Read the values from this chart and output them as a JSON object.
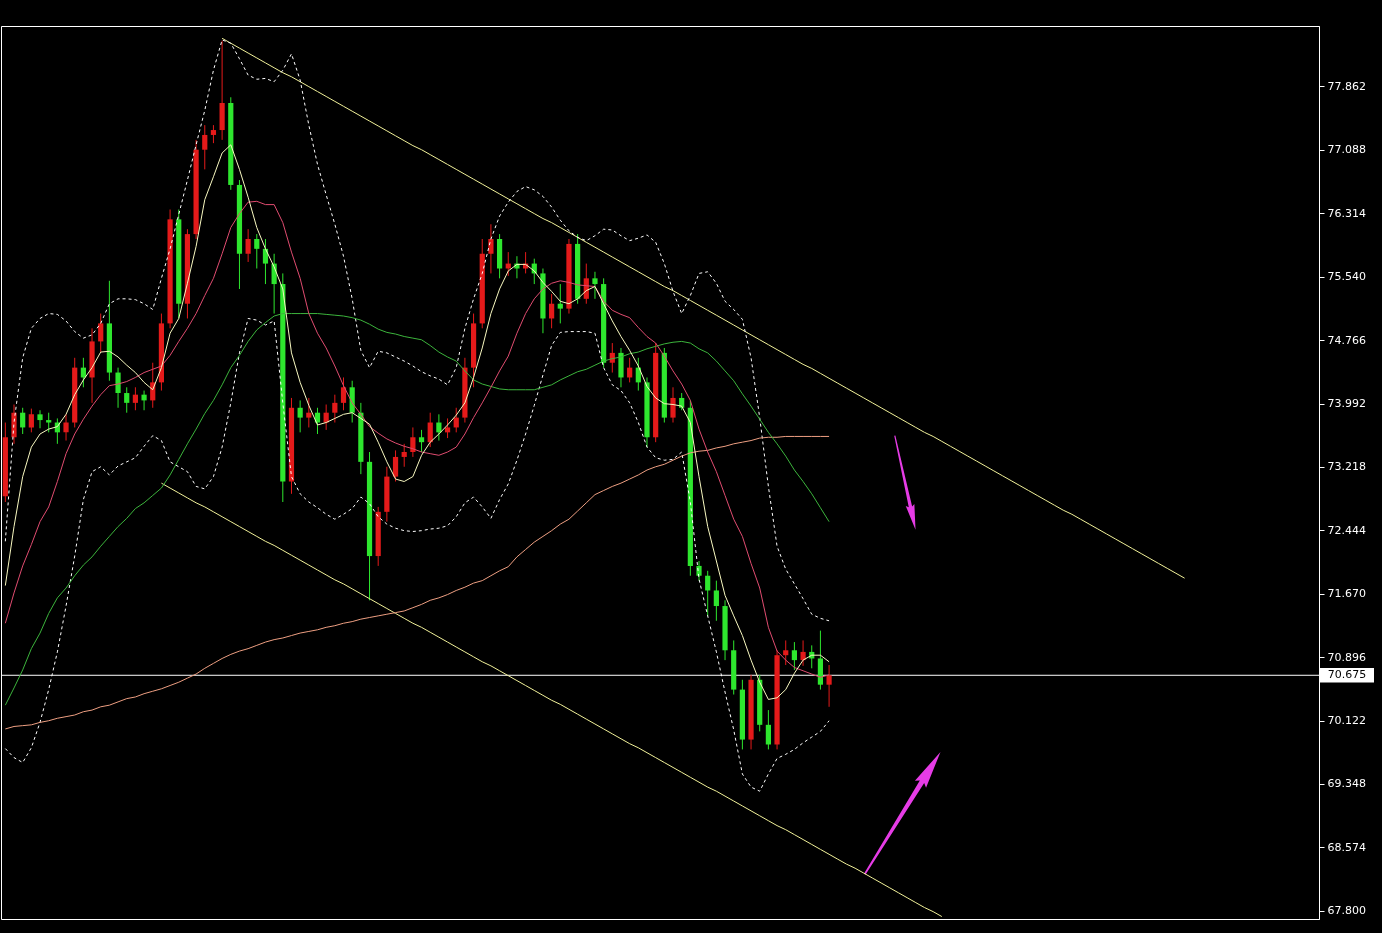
{
  "chart_data": {
    "type": "candlestick",
    "categories": [
      null,
      null,
      null,
      null,
      null,
      null,
      null,
      null,
      null,
      null,
      null,
      null,
      null,
      null,
      null,
      null,
      null,
      null,
      null,
      null,
      null,
      null,
      null,
      null,
      null,
      null,
      null,
      null,
      null,
      null,
      null,
      null,
      null,
      null,
      null,
      null,
      null,
      null,
      null,
      null,
      null,
      null,
      null,
      null,
      null,
      null,
      null,
      null,
      null,
      null,
      null,
      null,
      null,
      null,
      null,
      null,
      null,
      null,
      null,
      null,
      null,
      null,
      null,
      null,
      null,
      null,
      null,
      null,
      null,
      null,
      null,
      null,
      null,
      null,
      null,
      null,
      null,
      null,
      null,
      null,
      null,
      null,
      null,
      null,
      null,
      null,
      null,
      null,
      null,
      null,
      null,
      null,
      null,
      null,
      null,
      null,
      null,
      null,
      null,
      null,
      null,
      null,
      null,
      null,
      null,
      null,
      null,
      null,
      null,
      null,
      null,
      null,
      null,
      null,
      null,
      null,
      null,
      null,
      null,
      null,
      null,
      null,
      null,
      null,
      null,
      null,
      null,
      null,
      null,
      null,
      null,
      null,
      null,
      null,
      null,
      null,
      null,
      null,
      null,
      null,
      null,
      null,
      null,
      null,
      null,
      null,
      null,
      null,
      null,
      null,
      null,
      null
    ],
    "ohlc": [
      [
        72.86,
        73.76,
        72.79,
        73.58
      ],
      [
        73.58,
        73.98,
        73.5,
        73.88
      ],
      [
        73.88,
        73.94,
        73.62,
        73.7
      ],
      [
        73.7,
        73.93,
        73.64,
        73.86
      ],
      [
        73.86,
        73.91,
        73.69,
        73.79
      ],
      [
        73.79,
        73.88,
        73.64,
        73.76
      ],
      [
        73.76,
        73.81,
        73.5,
        73.64
      ],
      [
        73.64,
        73.86,
        73.54,
        73.76
      ],
      [
        73.76,
        74.55,
        73.7,
        74.43
      ],
      [
        74.43,
        74.55,
        74.19,
        74.31
      ],
      [
        74.31,
        74.91,
        74.0,
        74.75
      ],
      [
        74.75,
        75.09,
        74.61,
        74.97
      ],
      [
        74.97,
        75.49,
        74.27,
        74.37
      ],
      [
        74.37,
        74.43,
        73.94,
        74.12
      ],
      [
        74.12,
        74.19,
        73.88,
        74.0
      ],
      [
        74.0,
        74.19,
        73.91,
        74.1
      ],
      [
        74.1,
        74.15,
        73.91,
        74.03
      ],
      [
        74.03,
        74.49,
        73.94,
        74.25
      ],
      [
        74.25,
        75.09,
        74.15,
        74.97
      ],
      [
        74.97,
        76.36,
        74.91,
        76.24
      ],
      [
        76.24,
        76.36,
        75.03,
        75.21
      ],
      [
        75.21,
        76.12,
        75.03,
        76.06
      ],
      [
        76.06,
        77.21,
        76.0,
        77.09
      ],
      [
        77.09,
        77.39,
        76.85,
        77.27
      ],
      [
        77.27,
        77.39,
        77.17,
        77.33
      ],
      [
        77.33,
        78.42,
        77.21,
        77.66
      ],
      [
        77.66,
        77.73,
        76.6,
        76.66
      ],
      [
        76.66,
        76.72,
        75.39,
        75.82
      ],
      [
        75.82,
        76.12,
        75.72,
        76.0
      ],
      [
        76.0,
        76.06,
        75.64,
        75.88
      ],
      [
        75.88,
        76.0,
        75.45,
        75.7
      ],
      [
        75.7,
        75.82,
        75.09,
        75.45
      ],
      [
        75.45,
        75.58,
        72.79,
        73.04
      ],
      [
        73.04,
        74.06,
        72.89,
        73.94
      ],
      [
        73.94,
        74.03,
        73.64,
        73.82
      ],
      [
        73.82,
        74.06,
        73.7,
        73.88
      ],
      [
        73.88,
        73.94,
        73.62,
        73.76
      ],
      [
        73.76,
        73.98,
        73.67,
        73.88
      ],
      [
        73.88,
        74.1,
        73.76,
        74.0
      ],
      [
        74.0,
        74.31,
        73.91,
        74.19
      ],
      [
        74.19,
        74.27,
        73.76,
        73.88
      ],
      [
        73.88,
        74.0,
        73.13,
        73.28
      ],
      [
        73.28,
        73.4,
        71.59,
        72.13
      ],
      [
        72.13,
        72.73,
        72.01,
        72.67
      ],
      [
        72.67,
        73.22,
        72.55,
        73.1
      ],
      [
        73.1,
        73.42,
        73.04,
        73.34
      ],
      [
        73.34,
        73.5,
        73.22,
        73.4
      ],
      [
        73.4,
        73.7,
        73.34,
        73.58
      ],
      [
        73.58,
        73.67,
        73.4,
        73.52
      ],
      [
        73.52,
        73.88,
        73.46,
        73.76
      ],
      [
        73.76,
        73.86,
        73.54,
        73.64
      ],
      [
        73.64,
        73.81,
        73.57,
        73.7
      ],
      [
        73.7,
        73.94,
        73.64,
        73.82
      ],
      [
        73.82,
        74.55,
        73.76,
        74.43
      ],
      [
        74.43,
        75.09,
        74.19,
        74.97
      ],
      [
        74.97,
        76.0,
        74.91,
        75.82
      ],
      [
        75.82,
        76.18,
        75.58,
        76.0
      ],
      [
        76.0,
        76.06,
        75.52,
        75.64
      ],
      [
        75.64,
        75.84,
        75.55,
        75.7
      ],
      [
        75.7,
        75.79,
        75.52,
        75.64
      ],
      [
        75.64,
        75.84,
        75.58,
        75.7
      ],
      [
        75.7,
        75.76,
        75.45,
        75.58
      ],
      [
        75.58,
        75.64,
        74.85,
        75.03
      ],
      [
        75.03,
        75.33,
        74.91,
        75.21
      ],
      [
        75.21,
        75.45,
        74.97,
        75.15
      ],
      [
        75.15,
        76.0,
        75.09,
        75.94
      ],
      [
        75.94,
        76.06,
        75.21,
        75.27
      ],
      [
        75.27,
        75.7,
        75.21,
        75.52
      ],
      [
        75.52,
        75.6,
        75.27,
        75.45
      ],
      [
        75.45,
        75.52,
        74.43,
        74.49
      ],
      [
        74.49,
        74.73,
        74.37,
        74.61
      ],
      [
        74.61,
        74.67,
        74.19,
        74.31
      ],
      [
        74.31,
        74.55,
        74.25,
        74.43
      ],
      [
        74.43,
        74.55,
        74.15,
        74.25
      ],
      [
        74.25,
        74.31,
        73.46,
        73.58
      ],
      [
        73.58,
        74.73,
        73.52,
        74.61
      ],
      [
        74.61,
        74.67,
        73.76,
        73.82
      ],
      [
        73.82,
        74.19,
        73.76,
        74.06
      ],
      [
        74.06,
        74.12,
        73.91,
        73.94
      ],
      [
        73.94,
        74.03,
        71.89,
        72.01
      ],
      [
        72.01,
        72.07,
        71.83,
        71.89
      ],
      [
        71.89,
        71.95,
        71.4,
        71.71
      ],
      [
        71.71,
        71.83,
        71.34,
        71.52
      ],
      [
        71.52,
        71.59,
        70.86,
        70.98
      ],
      [
        70.98,
        71.1,
        70.44,
        70.5
      ],
      [
        70.5,
        70.62,
        69.77,
        69.89
      ],
      [
        69.89,
        70.68,
        69.77,
        70.62
      ],
      [
        70.62,
        70.68,
        69.99,
        70.07
      ],
      [
        70.07,
        70.25,
        69.77,
        69.83
      ],
      [
        69.83,
        70.98,
        69.77,
        70.92
      ],
      [
        70.92,
        71.1,
        70.8,
        70.98
      ],
      [
        70.98,
        71.08,
        70.74,
        70.86
      ],
      [
        70.86,
        71.1,
        70.79,
        70.96
      ],
      [
        70.96,
        71.04,
        70.76,
        70.88
      ],
      [
        70.88,
        71.22,
        70.5,
        70.56
      ],
      [
        70.56,
        70.8,
        70.29,
        70.675
      ],
      null,
      null,
      null,
      null,
      null,
      null,
      null,
      null,
      null,
      null,
      null,
      null,
      null,
      null,
      null,
      null,
      null,
      null,
      null,
      null,
      null,
      null,
      null,
      null,
      null,
      null,
      null,
      null,
      null,
      null,
      null,
      null,
      null,
      null,
      null,
      null,
      null,
      null,
      null,
      null,
      null,
      null,
      null,
      null,
      null,
      null,
      null,
      null,
      null,
      null,
      null,
      null,
      null,
      null,
      null,
      null
    ],
    "colors": [
      "#e41a1a",
      "#e41a1a",
      "#2ee62e",
      "#e41a1a",
      "#2ee62e",
      "#2ee62e",
      "#2ee62e",
      "#e41a1a",
      "#e41a1a",
      "#2ee62e",
      "#e41a1a",
      "#e41a1a",
      "#2ee62e",
      "#2ee62e",
      "#2ee62e",
      "#e41a1a",
      "#2ee62e",
      "#e41a1a",
      "#e41a1a",
      "#e41a1a",
      "#2ee62e",
      "#e41a1a",
      "#e41a1a",
      "#e41a1a",
      "#e41a1a",
      "#e41a1a",
      "#2ee62e",
      "#2ee62e",
      "#e41a1a",
      "#2ee62e",
      "#2ee62e",
      "#2ee62e",
      "#2ee62e",
      "#e41a1a",
      "#2ee62e",
      "#e41a1a",
      "#2ee62e",
      "#e41a1a",
      "#e41a1a",
      "#e41a1a",
      "#2ee62e",
      "#2ee62e",
      "#2ee62e",
      "#e41a1a",
      "#e41a1a",
      "#e41a1a",
      "#e41a1a",
      "#e41a1a",
      "#2ee62e",
      "#e41a1a",
      "#2ee62e",
      "#e41a1a",
      "#e41a1a",
      "#e41a1a",
      "#e41a1a",
      "#e41a1a",
      "#e41a1a",
      "#2ee62e",
      "#e41a1a",
      "#2ee62e",
      "#e41a1a",
      "#2ee62e",
      "#2ee62e",
      "#e41a1a",
      "#2ee62e",
      "#e41a1a",
      "#2ee62e",
      "#e41a1a",
      "#2ee62e",
      "#2ee62e",
      "#e41a1a",
      "#2ee62e",
      "#e41a1a",
      "#2ee62e",
      "#2ee62e",
      "#e41a1a",
      "#2ee62e",
      "#e41a1a",
      "#2ee62e",
      "#2ee62e",
      "#2ee62e",
      "#2ee62e",
      "#2ee62e",
      "#2ee62e",
      "#2ee62e",
      "#2ee62e",
      "#e41a1a",
      "#2ee62e",
      "#2ee62e",
      "#e41a1a",
      "#e41a1a",
      "#2ee62e",
      "#e41a1a",
      "#2ee62e",
      "#2ee62e",
      "#e41a1a",
      null,
      null,
      null,
      null,
      null,
      null,
      null,
      null,
      null,
      null,
      null,
      null,
      null,
      null,
      null,
      null,
      null,
      null,
      null,
      null,
      null,
      null,
      null,
      null,
      null,
      null,
      null,
      null,
      null,
      null,
      null,
      null,
      null,
      null,
      null,
      null,
      null,
      null,
      null,
      null,
      null,
      null,
      null,
      null,
      null,
      null,
      null,
      null,
      null,
      null,
      null,
      null,
      null,
      null,
      null,
      null
    ],
    "series": [
      {
        "type": "line",
        "color": "#f2f29a",
        "values": [
          null,
          null,
          null,
          null,
          null,
          null,
          null,
          null,
          null,
          null,
          null,
          null,
          null,
          null,
          null,
          null,
          null,
          null,
          null,
          null,
          null,
          null,
          null,
          null,
          null,
          78.45,
          78.39,
          78.33,
          78.27,
          78.21,
          78.15,
          78.09,
          78.03,
          77.98,
          77.92,
          77.86,
          77.8,
          77.74,
          77.68,
          77.62,
          77.56,
          77.5,
          77.44,
          77.38,
          77.32,
          77.26,
          77.2,
          77.14,
          77.09,
          77.03,
          76.97,
          76.91,
          76.85,
          76.79,
          76.73,
          76.67,
          76.61,
          76.55,
          76.49,
          76.43,
          76.37,
          76.31,
          76.25,
          76.2,
          76.14,
          76.08,
          76.02,
          75.96,
          75.9,
          75.84,
          75.78,
          75.72,
          75.66,
          75.6,
          75.54,
          75.48,
          75.42,
          75.37,
          75.31,
          75.25,
          75.19,
          75.13,
          75.07,
          75.01,
          74.95,
          74.89,
          74.83,
          74.77,
          74.71,
          74.65,
          74.59,
          74.53,
          74.47,
          74.42,
          74.36,
          74.3,
          74.24,
          74.18,
          74.12,
          74.06,
          74.0,
          73.94,
          73.88,
          73.82,
          73.76,
          73.7,
          73.64,
          73.59,
          73.53,
          73.47,
          73.41,
          73.35,
          73.29,
          73.23,
          73.17,
          73.11,
          73.05,
          72.99,
          72.93,
          72.87,
          72.81,
          72.75,
          72.69,
          72.64,
          72.58,
          72.52,
          72.46,
          72.4,
          72.34,
          72.28,
          72.22,
          72.16,
          72.1,
          72.04,
          71.98,
          71.92,
          71.86,
          null,
          null,
          null,
          null,
          null,
          null,
          null,
          null,
          null,
          null,
          null,
          null,
          null,
          null,
          null
        ]
      },
      {
        "type": "line",
        "color": "#f2f29a",
        "values": [
          null,
          null,
          null,
          null,
          null,
          null,
          null,
          null,
          null,
          null,
          null,
          null,
          null,
          null,
          null,
          null,
          null,
          null,
          73.02,
          72.96,
          72.9,
          72.84,
          72.78,
          72.73,
          72.67,
          72.61,
          72.55,
          72.49,
          72.43,
          72.37,
          72.31,
          72.26,
          72.2,
          72.14,
          72.08,
          72.02,
          71.96,
          71.9,
          71.84,
          71.79,
          71.73,
          71.67,
          71.61,
          71.55,
          71.49,
          71.43,
          71.37,
          71.31,
          71.26,
          71.2,
          71.14,
          71.08,
          71.02,
          70.96,
          70.9,
          70.84,
          70.79,
          70.73,
          70.67,
          70.61,
          70.55,
          70.49,
          70.43,
          70.37,
          70.32,
          70.26,
          70.2,
          70.14,
          70.08,
          70.02,
          69.96,
          69.9,
          69.84,
          69.79,
          69.73,
          69.67,
          69.61,
          69.55,
          69.49,
          69.43,
          69.37,
          69.31,
          69.26,
          69.2,
          69.14,
          69.08,
          69.02,
          68.96,
          68.9,
          68.84,
          68.79,
          68.73,
          68.67,
          68.61,
          68.55,
          68.49,
          68.43,
          68.37,
          68.32,
          68.26,
          68.2,
          68.14,
          68.08,
          68.02,
          67.96,
          67.9,
          67.84,
          67.79,
          67.73,
          null,
          null,
          null,
          null,
          null,
          null,
          null,
          null,
          null,
          null,
          null,
          null,
          null,
          null,
          null,
          null,
          null,
          null,
          null,
          null,
          null,
          null,
          null,
          null,
          null,
          null,
          null,
          null,
          null,
          null,
          null,
          null,
          null,
          null,
          null,
          null,
          null,
          null,
          null,
          null,
          null,
          null,
          null
        ]
      },
      {
        "type": "line",
        "color": "#ffffff",
        "line_style": "dotted",
        "values": [
          72.31,
          73.76,
          74.55,
          74.91,
          75.03,
          75.09,
          75.08,
          75.0,
          74.87,
          74.79,
          74.83,
          74.97,
          75.21,
          75.27,
          75.27,
          75.26,
          75.21,
          75.14,
          75.52,
          75.88,
          76.3,
          76.72,
          77.15,
          77.57,
          78.06,
          78.43,
          78.39,
          78.2,
          78.0,
          77.95,
          77.96,
          77.92,
          78.06,
          78.26,
          77.94,
          77.39,
          76.91,
          76.54,
          76.18,
          75.79,
          75.27,
          74.64,
          74.43,
          74.63,
          74.61,
          74.56,
          74.51,
          74.45,
          74.38,
          74.33,
          74.29,
          74.22,
          74.43,
          74.91,
          75.27,
          75.58,
          76.0,
          76.28,
          76.45,
          76.58,
          76.64,
          76.6,
          76.52,
          76.39,
          76.23,
          76.1,
          76.02,
          75.98,
          76.04,
          76.12,
          76.11,
          76.04,
          75.98,
          76.01,
          76.05,
          75.96,
          75.7,
          75.36,
          75.09,
          75.31,
          75.58,
          75.6,
          75.46,
          75.24,
          75.14,
          75.02,
          74.55,
          73.82,
          72.98,
          72.25,
          71.97,
          71.79,
          71.61,
          71.42,
          71.37,
          71.34,
          null,
          null,
          null,
          null,
          null,
          null,
          null,
          null,
          null,
          null,
          null,
          null,
          null,
          null,
          null,
          null,
          null,
          null,
          null,
          null,
          null,
          null,
          null,
          null,
          null,
          null,
          null,
          null,
          null,
          null,
          null,
          null,
          null,
          null,
          null,
          null,
          null,
          null,
          null,
          null,
          null,
          null,
          null,
          null,
          null,
          null,
          null,
          null,
          null,
          null,
          null,
          null,
          null,
          null,
          null,
          null
        ]
      },
      {
        "type": "line",
        "color": "#ffffff",
        "line_style": "dotted",
        "values": [
          69.78,
          69.67,
          69.61,
          69.79,
          70.1,
          70.5,
          70.96,
          71.52,
          72.13,
          72.82,
          73.16,
          73.22,
          73.12,
          73.23,
          73.28,
          73.33,
          73.47,
          73.6,
          73.54,
          73.28,
          73.22,
          73.16,
          72.98,
          72.95,
          73.1,
          73.46,
          74.0,
          74.61,
          75.03,
          75.01,
          74.95,
          75.0,
          74.0,
          73.1,
          72.89,
          72.79,
          72.72,
          72.64,
          72.58,
          72.64,
          72.71,
          72.85,
          72.77,
          72.61,
          72.52,
          72.47,
          72.44,
          72.43,
          72.44,
          72.46,
          72.47,
          72.5,
          72.61,
          72.78,
          72.85,
          72.73,
          72.59,
          72.82,
          73.01,
          73.3,
          73.62,
          73.97,
          74.34,
          74.7,
          74.86,
          74.87,
          74.87,
          74.87,
          74.85,
          74.43,
          74.22,
          74.15,
          74.0,
          73.76,
          73.46,
          73.33,
          73.3,
          73.31,
          73.4,
          72.79,
          71.85,
          71.4,
          70.96,
          70.47,
          70.01,
          69.47,
          69.31,
          69.26,
          69.47,
          69.66,
          69.71,
          69.77,
          69.85,
          69.92,
          69.99,
          70.12,
          null,
          null,
          null,
          null,
          null,
          null,
          null,
          null,
          null,
          null,
          null,
          null,
          null,
          null,
          null,
          null,
          null,
          null,
          null,
          null,
          null,
          null,
          null,
          null,
          null,
          null,
          null,
          null,
          null,
          null,
          null,
          null,
          null,
          null,
          null,
          null,
          null,
          null,
          null,
          null,
          null,
          null,
          null,
          null,
          null,
          null,
          null,
          null,
          null,
          null,
          null,
          null,
          null,
          null,
          null,
          null
        ]
      },
      {
        "type": "line",
        "color": "#ee9f82",
        "values": [
          70.02,
          70.05,
          70.06,
          70.07,
          70.1,
          70.12,
          70.15,
          70.17,
          70.19,
          70.23,
          70.25,
          70.29,
          70.31,
          70.35,
          70.39,
          70.41,
          70.45,
          70.48,
          70.51,
          70.55,
          70.59,
          70.64,
          70.69,
          70.76,
          70.82,
          70.88,
          70.93,
          70.97,
          71.0,
          71.04,
          71.08,
          71.11,
          71.13,
          71.16,
          71.19,
          71.21,
          71.23,
          71.26,
          71.28,
          71.31,
          71.33,
          71.36,
          71.38,
          71.4,
          71.42,
          71.44,
          71.46,
          71.5,
          71.54,
          71.59,
          71.62,
          71.66,
          71.71,
          71.75,
          71.8,
          71.83,
          71.89,
          71.95,
          72.0,
          72.12,
          72.21,
          72.3,
          72.37,
          72.44,
          72.52,
          72.58,
          72.68,
          72.78,
          72.88,
          72.93,
          72.98,
          73.02,
          73.07,
          73.12,
          73.18,
          73.22,
          73.25,
          73.3,
          73.35,
          73.39,
          73.41,
          73.42,
          73.45,
          73.47,
          73.5,
          73.52,
          73.54,
          73.57,
          73.58,
          73.58,
          73.59,
          73.59,
          73.59,
          73.59,
          73.59,
          73.59,
          null,
          null,
          null,
          null,
          null,
          null,
          null,
          null,
          null,
          null,
          null,
          null,
          null,
          null,
          null,
          null,
          null,
          null,
          null,
          null,
          null,
          null,
          null,
          null,
          null,
          null,
          null,
          null,
          null,
          null,
          null,
          null,
          null,
          null,
          null,
          null,
          null,
          null,
          null,
          null,
          null,
          null,
          null,
          null,
          null,
          null,
          null,
          null,
          null,
          null,
          null,
          null,
          null,
          null,
          null,
          null
        ]
      },
      {
        "type": "line",
        "color": "#3cb43c",
        "values": [
          70.31,
          70.52,
          70.74,
          71.0,
          71.19,
          71.43,
          71.62,
          71.74,
          71.89,
          72.02,
          72.12,
          72.25,
          72.37,
          72.49,
          72.59,
          72.71,
          72.78,
          72.87,
          72.96,
          73.12,
          73.31,
          73.5,
          73.68,
          73.87,
          74.03,
          74.22,
          74.43,
          74.58,
          74.75,
          74.89,
          74.98,
          75.06,
          75.09,
          75.09,
          75.09,
          75.09,
          75.09,
          75.08,
          75.07,
          75.06,
          75.04,
          75.01,
          74.96,
          74.9,
          74.86,
          74.84,
          74.81,
          74.79,
          74.77,
          74.7,
          74.62,
          74.56,
          74.51,
          74.39,
          74.28,
          74.23,
          74.2,
          74.17,
          74.16,
          74.16,
          74.16,
          74.16,
          74.19,
          74.22,
          74.28,
          74.33,
          74.38,
          74.41,
          74.46,
          74.51,
          74.54,
          74.56,
          74.6,
          74.62,
          74.66,
          74.69,
          74.72,
          74.74,
          74.75,
          74.73,
          74.66,
          74.61,
          74.51,
          74.39,
          74.27,
          74.11,
          73.96,
          73.8,
          73.64,
          73.5,
          73.35,
          73.18,
          73.04,
          72.89,
          72.72,
          72.55,
          null,
          null,
          null,
          null,
          null,
          null,
          null,
          null,
          null,
          null,
          null,
          null,
          null,
          null,
          null,
          null,
          null,
          null,
          null,
          null,
          null,
          null,
          null,
          null,
          null,
          null,
          null,
          null,
          null,
          null,
          null,
          null,
          null,
          null,
          null,
          null,
          null,
          null,
          null,
          null,
          null,
          null,
          null,
          null,
          null,
          null,
          null,
          null,
          null,
          null,
          null,
          null,
          null,
          null,
          null,
          null
        ]
      },
      {
        "type": "line",
        "color": "#e04c70",
        "values": [
          71.31,
          71.68,
          72.01,
          72.27,
          72.55,
          72.73,
          73.04,
          73.38,
          73.62,
          73.8,
          73.96,
          74.1,
          74.21,
          74.23,
          74.26,
          74.31,
          74.37,
          74.41,
          74.45,
          74.58,
          74.75,
          74.91,
          75.09,
          75.31,
          75.52,
          75.82,
          76.14,
          76.31,
          76.45,
          76.46,
          76.42,
          76.42,
          76.2,
          75.84,
          75.52,
          75.09,
          74.85,
          74.67,
          74.45,
          74.21,
          74.0,
          73.86,
          73.71,
          73.63,
          73.56,
          73.51,
          73.47,
          73.44,
          73.4,
          73.38,
          73.36,
          73.4,
          73.46,
          73.62,
          73.82,
          74.0,
          74.19,
          74.39,
          74.57,
          74.85,
          75.09,
          75.27,
          75.39,
          75.46,
          75.49,
          75.47,
          75.44,
          75.43,
          75.42,
          75.24,
          75.13,
          75.08,
          75.04,
          74.92,
          74.81,
          74.73,
          74.57,
          74.39,
          74.23,
          74.03,
          73.68,
          73.4,
          73.16,
          72.87,
          72.58,
          72.37,
          72.04,
          71.74,
          71.26,
          70.97,
          70.86,
          70.77,
          70.73,
          70.69,
          70.65,
          70.68,
          null,
          null,
          null,
          null,
          null,
          null,
          null,
          null,
          null,
          null,
          null,
          null,
          null,
          null,
          null,
          null,
          null,
          null,
          null,
          null,
          null,
          null,
          null,
          null,
          null,
          null,
          null,
          null,
          null,
          null,
          null,
          null,
          null,
          null,
          null,
          null,
          null,
          null,
          null,
          null,
          null,
          null,
          null,
          null,
          null,
          null,
          null,
          null,
          null,
          null,
          null,
          null,
          null,
          null,
          null,
          null
        ]
      },
      {
        "type": "line",
        "color": "#f8f8c0",
        "values": [
          71.77,
          72.49,
          73.1,
          73.46,
          73.62,
          73.68,
          73.71,
          73.86,
          74.1,
          74.28,
          74.43,
          74.62,
          74.63,
          74.56,
          74.46,
          74.37,
          74.25,
          74.16,
          74.43,
          74.85,
          75.03,
          75.46,
          75.91,
          76.48,
          76.76,
          77.05,
          77.15,
          76.85,
          76.51,
          76.14,
          75.88,
          75.66,
          75.39,
          74.61,
          74.25,
          73.97,
          73.73,
          73.76,
          73.81,
          73.86,
          73.88,
          73.81,
          73.74,
          73.52,
          73.28,
          73.07,
          73.04,
          73.1,
          73.36,
          73.52,
          73.62,
          73.73,
          73.85,
          74.0,
          74.31,
          74.67,
          75.09,
          75.39,
          75.61,
          75.69,
          75.69,
          75.61,
          75.47,
          75.36,
          75.24,
          75.21,
          75.27,
          75.37,
          75.42,
          75.21,
          75.0,
          74.81,
          74.64,
          74.45,
          74.2,
          74.06,
          73.99,
          73.98,
          73.96,
          73.76,
          73.1,
          72.49,
          72.07,
          71.65,
          71.4,
          71.16,
          70.86,
          70.59,
          70.38,
          70.4,
          70.5,
          70.7,
          70.86,
          70.92,
          70.92,
          70.84,
          null,
          null,
          null,
          null,
          null,
          null,
          null,
          null,
          null,
          null,
          null,
          null,
          null,
          null,
          null,
          null,
          null,
          null,
          null,
          null,
          null,
          null,
          null,
          null,
          null,
          null,
          null,
          null,
          null,
          null,
          null,
          null,
          null,
          null,
          null,
          null,
          null,
          null,
          null,
          null,
          null,
          null,
          null,
          null,
          null,
          null,
          null,
          null,
          null,
          null,
          null,
          null,
          null,
          null,
          null,
          null
        ]
      }
    ],
    "ylim": [
      67.7,
      78.6
    ],
    "yticks": [
      77.862,
      77.088,
      76.314,
      {
        "value": 75.54,
        "label": "75.540"
      },
      74.766,
      73.992,
      73.218,
      72.444,
      {
        "value": 71.67,
        "label": "71.670"
      },
      70.896,
      70.122,
      69.348,
      68.574,
      {
        "value": 67.8,
        "label": "67.800"
      }
    ],
    "grid": false,
    "tick_labels": "y",
    "ref_lines": [
      {
        "axis": "y",
        "value": 70.675,
        "label": "70.675",
        "color": "#ffffff"
      }
    ]
  }
}
